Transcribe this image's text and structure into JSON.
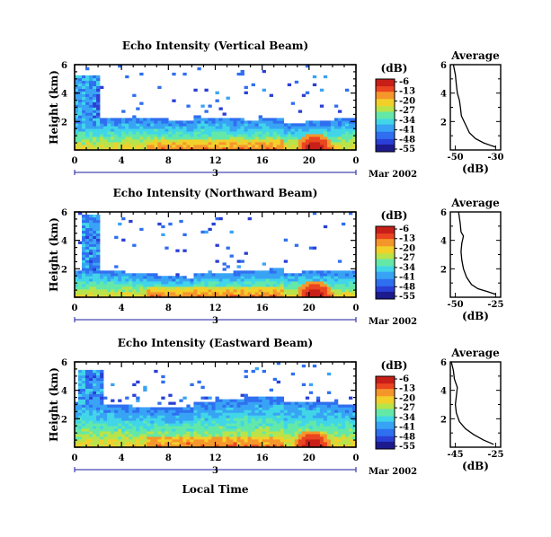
{
  "colormap": [
    "#1c1a8c",
    "#2a3fd6",
    "#2f6ff0",
    "#38a3f5",
    "#40d6e8",
    "#63e8a8",
    "#b9e34a",
    "#f2d02a",
    "#f5962a",
    "#ea4420",
    "#c81e18"
  ],
  "shared": {
    "xticks": [
      "0",
      "4",
      "8",
      "12",
      "16",
      "20",
      "0"
    ],
    "yticks": [
      "2",
      "4",
      "6"
    ],
    "ylabel": "Height (km)",
    "date_label": "Mar 2002",
    "date_index": "3",
    "colorbar_unit": "(dB)",
    "colorbar_ticks": [
      "-6",
      "-13",
      "-20",
      "-27",
      "-34",
      "-41",
      "-48",
      "-55"
    ],
    "avg_title": "Average",
    "avg_xlabel": "(dB)",
    "avg_yticks": [
      "2",
      "4",
      "6"
    ],
    "bottom_xlabel": "Local Time"
  },
  "chart_data": [
    {
      "type": "heatmap",
      "title": "Echo Intensity (Vertical Beam)",
      "x_range_hours": [
        0,
        24
      ],
      "y_range_km": [
        0,
        6
      ],
      "z_range_db": [
        -55,
        -6
      ],
      "scene": {
        "surge": [
          0,
          2,
          5.2
        ],
        "base": [
          2.0,
          1.0
        ],
        "hot": [
          20.5,
          1.2
        ]
      },
      "average_profile": {
        "xlim_db": [
          -50,
          -30
        ],
        "xticks": [
          "-50",
          "-30"
        ],
        "points": [
          [
            -51,
            6.0
          ],
          [
            -50,
            5.3
          ],
          [
            -49.5,
            4.6
          ],
          [
            -49,
            4.0
          ],
          [
            -48,
            3.5
          ],
          [
            -47.5,
            3.0
          ],
          [
            -47,
            2.4
          ],
          [
            -45,
            1.8
          ],
          [
            -43,
            1.2
          ],
          [
            -40,
            0.8
          ],
          [
            -36,
            0.5
          ],
          [
            -32,
            0.3
          ],
          [
            -30,
            0.2
          ]
        ]
      }
    },
    {
      "type": "heatmap",
      "title": "Echo Intensity (Northward Beam)",
      "x_range_hours": [
        0,
        24
      ],
      "y_range_km": [
        0,
        6
      ],
      "z_range_db": [
        -55,
        -6
      ],
      "scene": {
        "surge": [
          0.6,
          2.0,
          5.8
        ],
        "base": [
          1.6,
          1.0
        ],
        "hot": [
          20.5,
          1.2
        ]
      },
      "average_profile": {
        "xlim_db": [
          -50,
          -25
        ],
        "xticks": [
          "-50",
          "-25"
        ],
        "points": [
          [
            -48,
            6.0
          ],
          [
            -47,
            5.2
          ],
          [
            -46.5,
            4.6
          ],
          [
            -45,
            4.3
          ],
          [
            -46,
            3.8
          ],
          [
            -46.5,
            3.2
          ],
          [
            -46,
            2.6
          ],
          [
            -45,
            2.0
          ],
          [
            -43,
            1.4
          ],
          [
            -40,
            0.9
          ],
          [
            -36,
            0.6
          ],
          [
            -30,
            0.4
          ],
          [
            -25,
            0.2
          ]
        ]
      }
    },
    {
      "type": "heatmap",
      "title": "Echo Intensity (Eastward Beam)",
      "x_range_hours": [
        0,
        24
      ],
      "y_range_km": [
        0,
        6
      ],
      "z_range_db": [
        -55,
        -6
      ],
      "scene": {
        "surge": [
          0.2,
          2.5,
          5.4
        ],
        "base": [
          3.0,
          0.9
        ],
        "hot": [
          20.3,
          1.2
        ]
      },
      "average_profile": {
        "xlim_db": [
          -45,
          -25
        ],
        "xticks": [
          "-45",
          "-25"
        ],
        "points": [
          [
            -47,
            6.0
          ],
          [
            -46,
            5.4
          ],
          [
            -45.5,
            4.8
          ],
          [
            -44,
            4.2
          ],
          [
            -44.5,
            3.6
          ],
          [
            -45,
            3.0
          ],
          [
            -44.5,
            2.4
          ],
          [
            -43,
            1.8
          ],
          [
            -40,
            1.3
          ],
          [
            -36,
            0.9
          ],
          [
            -31,
            0.5
          ],
          [
            -26,
            0.2
          ]
        ]
      }
    }
  ]
}
